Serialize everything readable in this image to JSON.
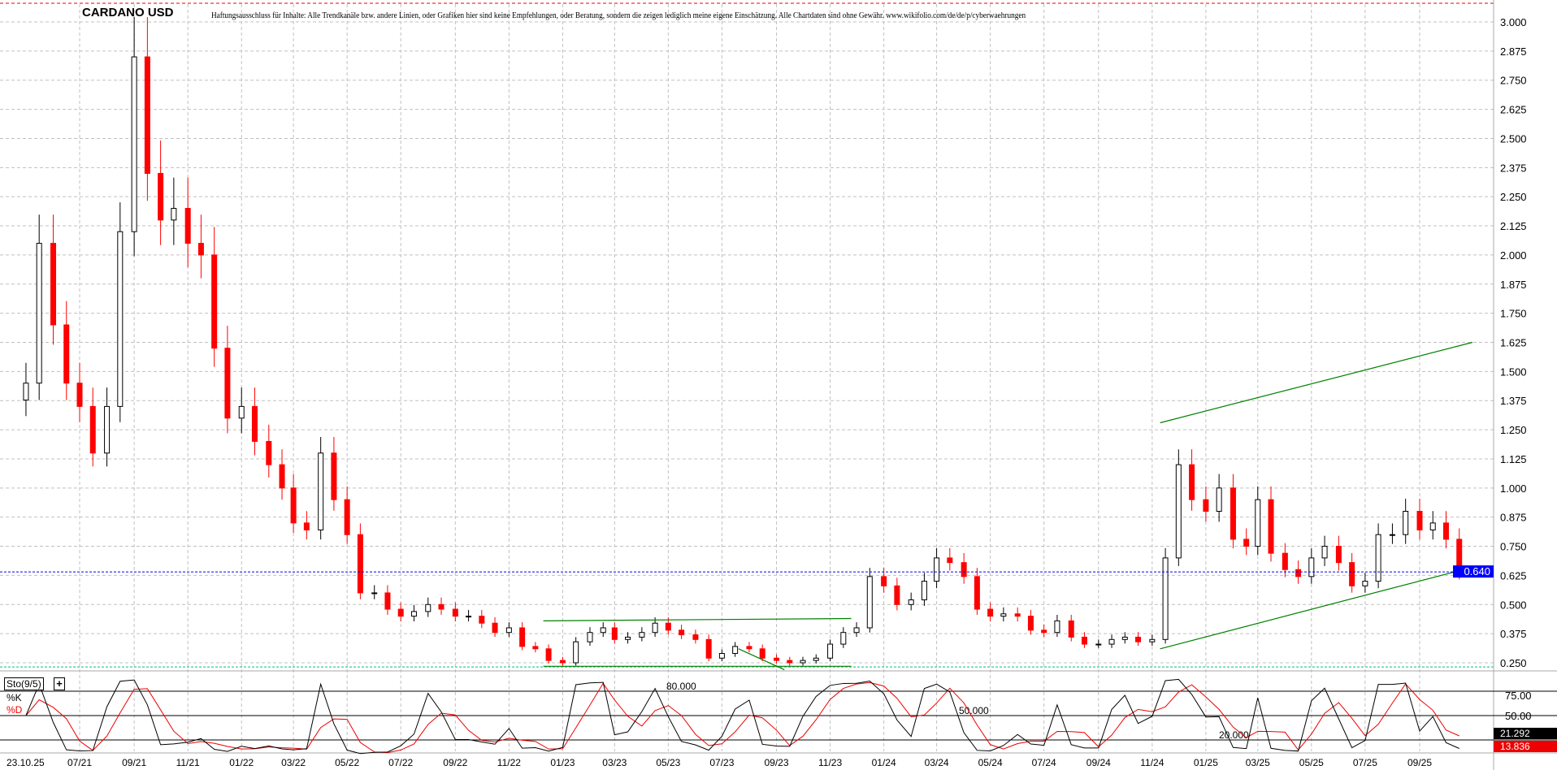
{
  "header": {
    "title": "CARDANO USD",
    "disclaimer": "Haftungsausschluss für Inhalte: Alle Trendkanäle bzw. andere Linien, oder Grafiken hier sind keine Empfehlungen, oder Beratung, sondern die zeigen lediglich meine eigene Einschätzung. Alle Chartdaten sind ohne Gewähr.  www.wikifolio.com/de/de/p/cyberwaehrungen"
  },
  "indicator": {
    "name": "Sto(9/5)",
    "plus": "+",
    "k_label": "%K",
    "d_label": "%D"
  },
  "colors": {
    "up": "#000000",
    "down": "#ff0000",
    "trendline": "#008000",
    "current_price": "#0000ff",
    "grid": "#c0c0c0"
  },
  "chart_data": [
    {
      "type": "candlestick",
      "title": "CARDANO USD",
      "yticks": [
        "3.000",
        "2.875",
        "2.750",
        "2.625",
        "2.500",
        "2.375",
        "2.250",
        "2.125",
        "2.000",
        "1.875",
        "1.750",
        "1.625",
        "1.500",
        "1.375",
        "1.250",
        "1.125",
        "1.000",
        "0.875",
        "0.750",
        "0.625",
        "0.500",
        "0.375",
        "0.250"
      ],
      "ylim": [
        0.25,
        3.0
      ],
      "xlim": [
        "2021-04-20",
        "2025-10-31"
      ],
      "xticks": [
        {
          "date": "2021-04-23",
          "label": "23.10.25"
        },
        {
          "date": "2021-07-01",
          "label": "07/21"
        },
        {
          "date": "2021-09-01",
          "label": "09/21"
        },
        {
          "date": "2021-11-01",
          "label": "11/21"
        },
        {
          "date": "2022-01-01",
          "label": "01/22"
        },
        {
          "date": "2022-03-01",
          "label": "03/22"
        },
        {
          "date": "2022-05-01",
          "label": "05/22"
        },
        {
          "date": "2022-07-01",
          "label": "07/22"
        },
        {
          "date": "2022-09-01",
          "label": "09/22"
        },
        {
          "date": "2022-11-01",
          "label": "11/22"
        },
        {
          "date": "2023-01-01",
          "label": "01/23"
        },
        {
          "date": "2023-03-01",
          "label": "03/23"
        },
        {
          "date": "2023-05-01",
          "label": "05/23"
        },
        {
          "date": "2023-07-01",
          "label": "07/23"
        },
        {
          "date": "2023-09-01",
          "label": "09/23"
        },
        {
          "date": "2023-11-01",
          "label": "11/23"
        },
        {
          "date": "2024-01-01",
          "label": "01/24"
        },
        {
          "date": "2024-03-01",
          "label": "03/24"
        },
        {
          "date": "2024-05-01",
          "label": "05/24"
        },
        {
          "date": "2024-07-01",
          "label": "07/24"
        },
        {
          "date": "2024-09-01",
          "label": "09/24"
        },
        {
          "date": "2024-11-01",
          "label": "11/24"
        },
        {
          "date": "2025-01-01",
          "label": "01/25"
        },
        {
          "date": "2025-03-01",
          "label": "03/25"
        },
        {
          "date": "2025-05-01",
          "label": "05/25"
        },
        {
          "date": "2025-07-01",
          "label": "07/25"
        },
        {
          "date": "2025-09-01",
          "label": "09/25"
        }
      ],
      "grid": true,
      "dates": [
        "2021-05-01",
        "2021-05-16",
        "2021-06-01",
        "2021-06-16",
        "2021-07-01",
        "2021-07-16",
        "2021-08-01",
        "2021-08-16",
        "2021-09-01",
        "2021-09-16",
        "2021-10-01",
        "2021-10-16",
        "2021-11-01",
        "2021-11-16",
        "2021-12-01",
        "2021-12-16",
        "2022-01-01",
        "2022-01-16",
        "2022-02-01",
        "2022-02-16",
        "2022-03-01",
        "2022-03-16",
        "2022-04-01",
        "2022-04-16",
        "2022-05-01",
        "2022-05-16",
        "2022-06-01",
        "2022-06-16",
        "2022-07-01",
        "2022-07-16",
        "2022-08-01",
        "2022-08-16",
        "2022-09-01",
        "2022-09-16",
        "2022-10-01",
        "2022-10-16",
        "2022-11-01",
        "2022-11-16",
        "2022-12-01",
        "2022-12-16",
        "2023-01-01",
        "2023-01-16",
        "2023-02-01",
        "2023-02-16",
        "2023-03-01",
        "2023-03-16",
        "2023-04-01",
        "2023-04-16",
        "2023-05-01",
        "2023-05-16",
        "2023-06-01",
        "2023-06-16",
        "2023-07-01",
        "2023-07-16",
        "2023-08-01",
        "2023-08-16",
        "2023-09-01",
        "2023-09-16",
        "2023-10-01",
        "2023-10-16",
        "2023-11-01",
        "2023-11-16",
        "2023-12-01",
        "2023-12-16",
        "2024-01-01",
        "2024-01-16",
        "2024-02-01",
        "2024-02-16",
        "2024-03-01",
        "2024-03-16",
        "2024-04-01",
        "2024-04-16",
        "2024-05-01",
        "2024-05-16",
        "2024-06-01",
        "2024-06-16",
        "2024-07-01",
        "2024-07-16",
        "2024-08-01",
        "2024-08-16",
        "2024-09-01",
        "2024-09-16",
        "2024-10-01",
        "2024-10-16",
        "2024-11-01",
        "2024-11-16",
        "2024-12-01",
        "2024-12-16",
        "2025-01-01",
        "2025-01-16",
        "2025-02-01",
        "2025-02-16",
        "2025-03-01",
        "2025-03-16",
        "2025-04-01",
        "2025-04-16",
        "2025-05-01",
        "2025-05-16",
        "2025-06-01",
        "2025-06-16",
        "2025-07-01",
        "2025-07-16",
        "2025-08-01",
        "2025-08-16",
        "2025-09-01",
        "2025-09-16",
        "2025-10-01",
        "2025-10-16"
      ],
      "close": [
        1.45,
        2.05,
        1.7,
        1.45,
        1.35,
        1.15,
        1.35,
        2.1,
        2.85,
        2.35,
        2.15,
        2.2,
        2.05,
        2.0,
        1.6,
        1.3,
        1.35,
        1.2,
        1.1,
        1.0,
        0.85,
        0.82,
        1.15,
        0.95,
        0.8,
        0.55,
        0.55,
        0.48,
        0.45,
        0.47,
        0.5,
        0.48,
        0.45,
        0.45,
        0.42,
        0.38,
        0.4,
        0.32,
        0.31,
        0.26,
        0.25,
        0.34,
        0.38,
        0.4,
        0.35,
        0.36,
        0.38,
        0.42,
        0.39,
        0.37,
        0.35,
        0.27,
        0.29,
        0.32,
        0.31,
        0.27,
        0.26,
        0.25,
        0.26,
        0.27,
        0.33,
        0.38,
        0.4,
        0.62,
        0.58,
        0.5,
        0.52,
        0.6,
        0.7,
        0.68,
        0.62,
        0.48,
        0.45,
        0.46,
        0.45,
        0.39,
        0.38,
        0.43,
        0.36,
        0.33,
        0.33,
        0.35,
        0.36,
        0.34,
        0.35,
        0.7,
        1.1,
        0.95,
        0.9,
        1.0,
        0.78,
        0.75,
        0.95,
        0.72,
        0.65,
        0.62,
        0.7,
        0.75,
        0.68,
        0.58,
        0.6,
        0.8,
        0.8,
        0.9,
        0.82,
        0.85,
        0.78,
        0.64
      ],
      "current_price": "0.640",
      "trendlines": [
        {
          "from": [
            "2024-11-10",
            1.28
          ],
          "to": [
            "2025-10-31",
            1.625
          ]
        },
        {
          "from": [
            "2024-11-10",
            0.31
          ],
          "to": [
            "2025-10-31",
            0.66
          ]
        },
        {
          "from": [
            "2022-12-10",
            0.43
          ],
          "to": [
            "2023-11-25",
            0.44
          ]
        },
        {
          "from": [
            "2022-12-10",
            0.235
          ],
          "to": [
            "2023-11-25",
            0.235
          ]
        },
        {
          "from": [
            "2023-07-20",
            0.31
          ],
          "to": [
            "2023-09-10",
            0.22
          ]
        }
      ]
    },
    {
      "type": "line",
      "title": "Sto(9/5)",
      "series": [
        {
          "name": "%K",
          "color": "#000000"
        },
        {
          "name": "%D",
          "color": "#ff0000"
        }
      ],
      "levels": [
        "80.000",
        "50.000",
        "20.000"
      ],
      "level_values": [
        80,
        50,
        20
      ],
      "yticks": [
        "75.00",
        "50.00"
      ],
      "ylim": [
        0,
        100
      ],
      "last_k": "21.292",
      "last_d": "13.836"
    }
  ]
}
